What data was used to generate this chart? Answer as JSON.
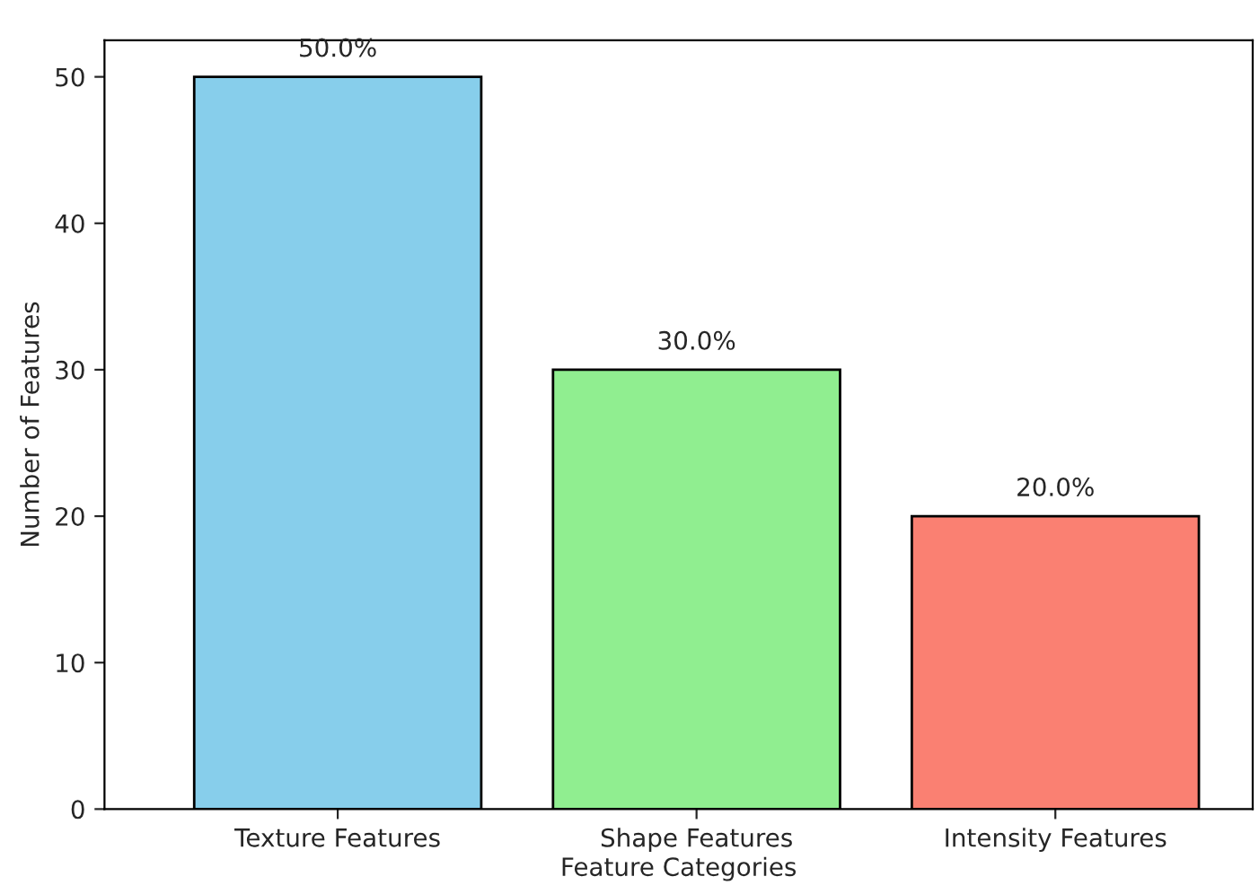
{
  "chart_data": {
    "type": "bar",
    "xlabel": "Feature Categories",
    "ylabel": "Number of Features",
    "categories": [
      "Texture Features",
      "Shape Features",
      "Intensity Features"
    ],
    "values": [
      50,
      30,
      20
    ],
    "colors": [
      "#87ceeb",
      "#90ee90",
      "#fa8072"
    ],
    "value_labels": [
      "50.0%",
      "30.0%",
      "20.0%"
    ],
    "ylim": [
      0,
      52.5
    ],
    "yticks": [
      0,
      10,
      20,
      30,
      40,
      50
    ],
    "grid": false,
    "legend": false
  }
}
